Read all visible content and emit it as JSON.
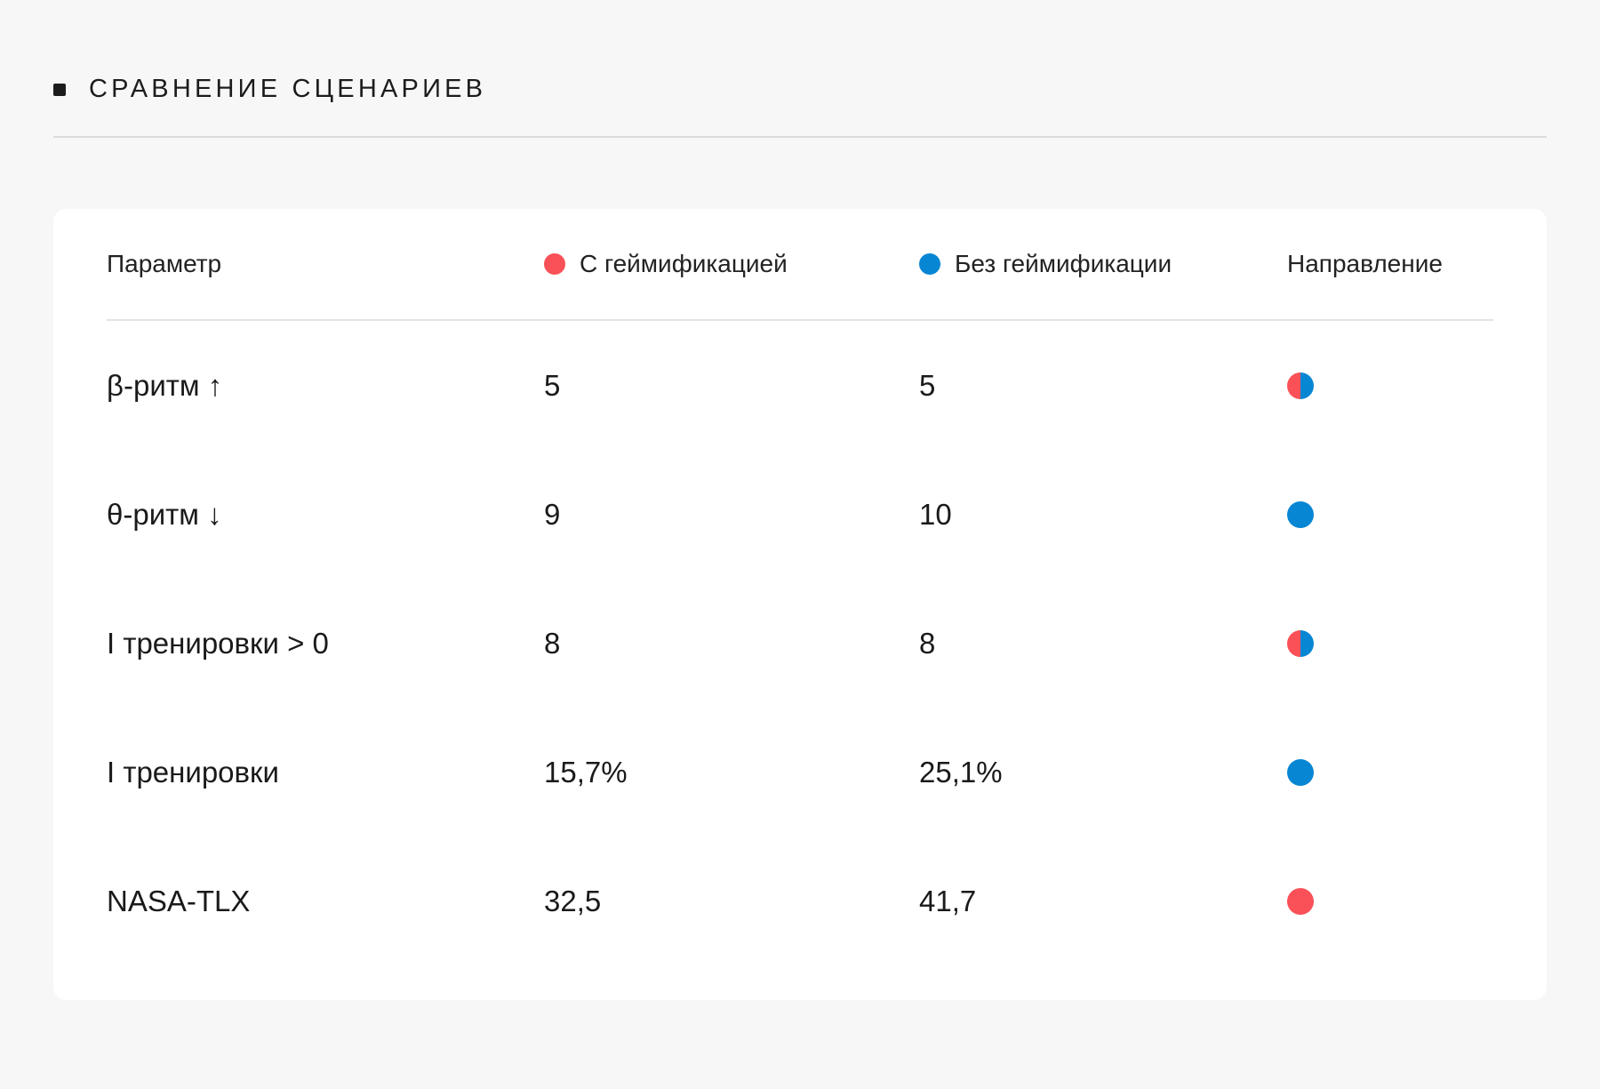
{
  "section": {
    "title": "СРАВНЕНИЕ СЦЕНАРИЕВ"
  },
  "colors": {
    "gamified": "#fa5058",
    "non_gamified": "#0786d4"
  },
  "table": {
    "headers": {
      "parameter": "Параметр",
      "gamified": "С геймификацией",
      "non_gamified": "Без геймификации",
      "direction": "Направление"
    },
    "rows": [
      {
        "parameter": "β-ритм ↑",
        "gamified": "5",
        "non_gamified": "5",
        "direction": "both"
      },
      {
        "parameter": "θ-ритм ↓",
        "gamified": "9",
        "non_gamified": "10",
        "direction": "non_gamified"
      },
      {
        "parameter": "I тренировки > 0",
        "gamified": "8",
        "non_gamified": "8",
        "direction": "both"
      },
      {
        "parameter": "I тренировки",
        "gamified": "15,7%",
        "non_gamified": "25,1%",
        "direction": "non_gamified"
      },
      {
        "parameter": "NASA-TLX",
        "gamified": "32,5",
        "non_gamified": "41,7",
        "direction": "gamified"
      }
    ]
  }
}
